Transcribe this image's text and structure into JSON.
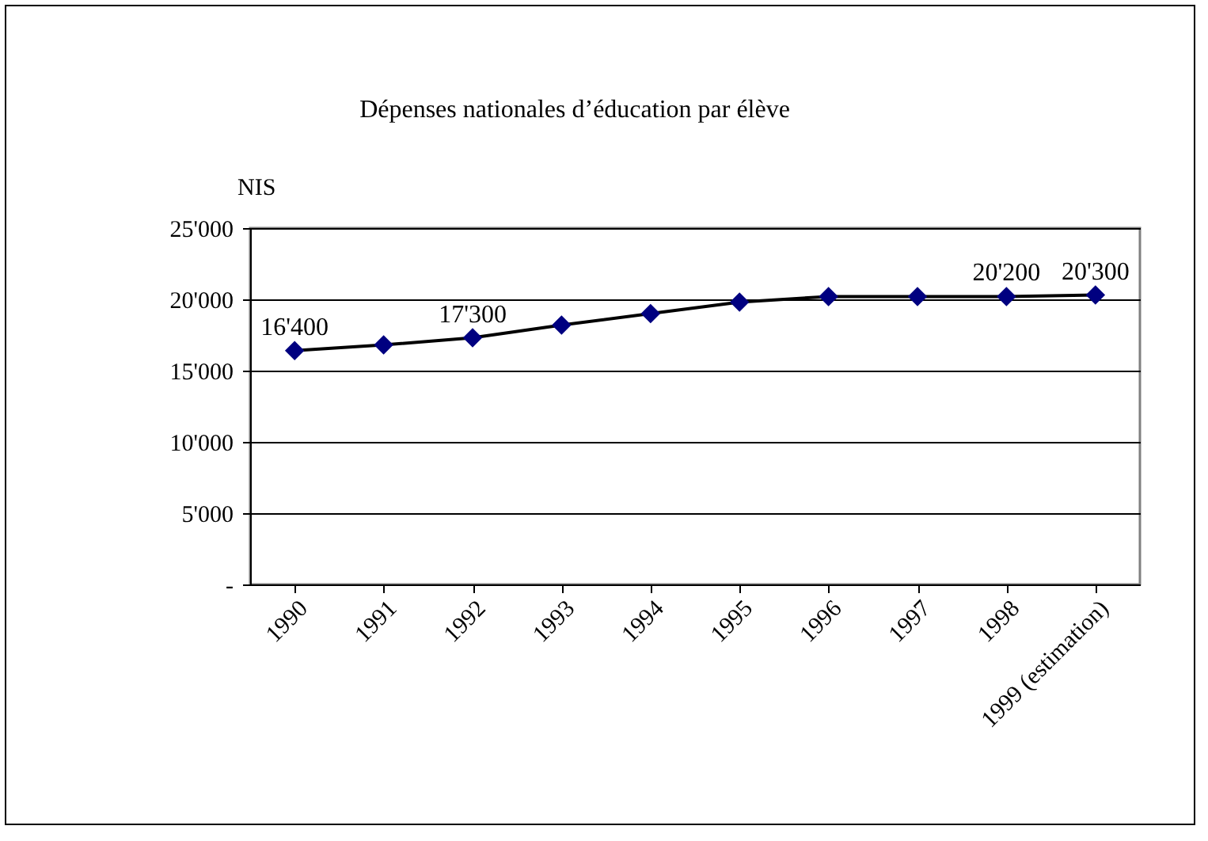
{
  "chart_data": {
    "type": "line",
    "title": "Dépenses nationales d’éducation par élève",
    "ylabel": "NIS",
    "categories": [
      "1990",
      "1991",
      "1992",
      "1993",
      "1994",
      "1995",
      "1996",
      "1997",
      "1998",
      "1999 (estimation)"
    ],
    "series": [
      {
        "color": "#000080",
        "values": [
          16400,
          16800,
          17300,
          18200,
          19000,
          19800,
          20200,
          20200,
          20200,
          20300
        ]
      }
    ],
    "value_labels": [
      "16'400",
      null,
      "17'300",
      null,
      null,
      null,
      null,
      null,
      "20'200",
      "20'300"
    ],
    "ylim": [
      0,
      25000
    ],
    "yticks": [
      {
        "value": 0,
        "label": "-"
      },
      {
        "value": 5000,
        "label": "5'000"
      },
      {
        "value": 10000,
        "label": "10'000"
      },
      {
        "value": 15000,
        "label": "15'000"
      },
      {
        "value": 20000,
        "label": "20'000"
      },
      {
        "value": 25000,
        "label": "25'000"
      }
    ],
    "grid": "y",
    "marker": "diamond",
    "line_style": "solid"
  }
}
